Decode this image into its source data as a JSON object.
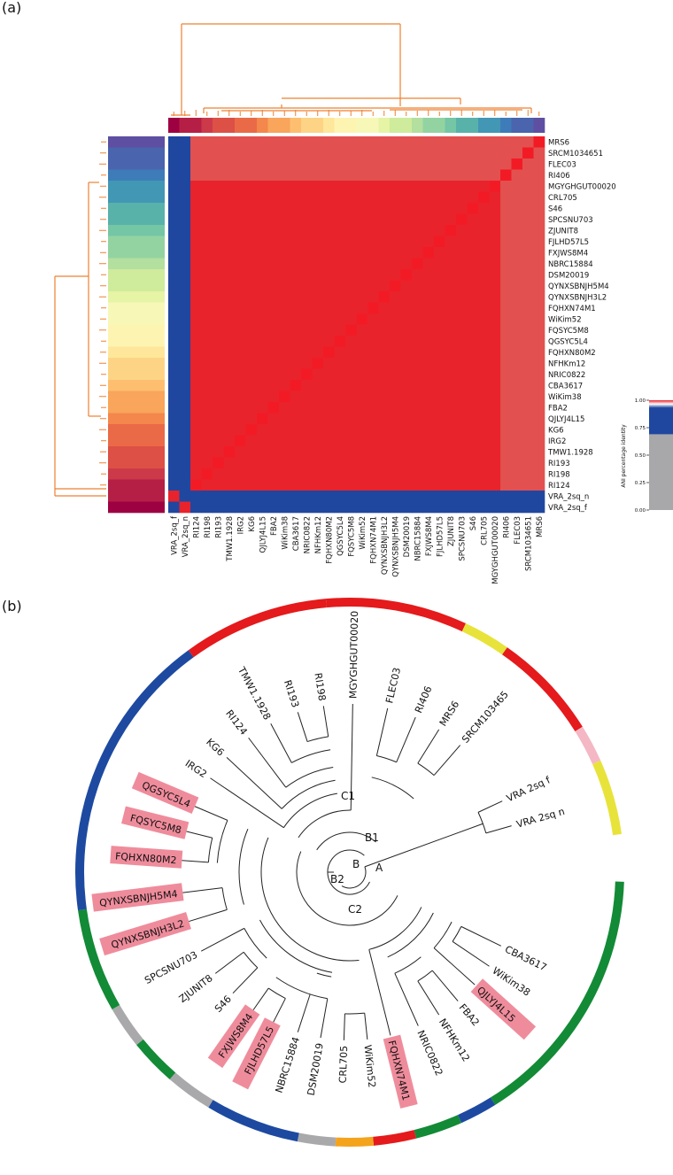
{
  "panels": {
    "a": "(a)",
    "b": "(b)"
  },
  "heatmap": {
    "rows": [
      "MRS6",
      "SRCM1034651",
      "FLEC03",
      "RI406",
      "MGYGHGUT00020",
      "CRL705",
      "S46",
      "SPCSNU703",
      "ZJUNIT8",
      "FJLHD57L5",
      "FXJWS8M4",
      "NBRC15884",
      "DSM20019",
      "QYNXSBNJH5M4",
      "QYNXSBNJH3L2",
      "FQHXN74M1",
      "WiKim52",
      "FQSYC5M8",
      "QGSYC5L4",
      "FQHXN80M2",
      "NFHKm12",
      "NRIC0822",
      "CBA3617",
      "WiKim38",
      "FBA2",
      "QJLYJ4L15",
      "KG6",
      "IRG2",
      "TMW1.1928",
      "RI193",
      "RI198",
      "RI124",
      "VRA_2sq_n",
      "VRA_2sq_f"
    ],
    "columns": [
      "VRA_2sq_f",
      "VRA_2sq_n",
      "RI124",
      "RI198",
      "RI193",
      "TMW1.1928",
      "IRG2",
      "KG6",
      "QJLYJ4L15",
      "FBA2",
      "WiKim38",
      "CBA3617",
      "NRIC0822",
      "NFHKm12",
      "FQHXN80M2",
      "QGSYC5L4",
      "FQSYC5M8",
      "WiKim52",
      "FQHXN74M1",
      "QYNXSBNJH3L2",
      "QYNXSBNJH5M4",
      "DSM20019",
      "NBRC15884",
      "FXJWS8M4",
      "FJLHD57L5",
      "ZJUNIT8",
      "SPCSNU703",
      "S46",
      "CRL705",
      "MGYGHGUT00020",
      "RI406",
      "FLEC03",
      "SRCM1034651",
      "MRS6"
    ],
    "colorbar": {
      "label": "ANI percentage identity",
      "ticks": [
        "1.00",
        "0.75",
        "0.50",
        "0.25",
        "0.00"
      ]
    },
    "colors": {
      "high": "#e8232c",
      "mid": "#e35050",
      "low": "#1f47a0",
      "gray": "#a8a8aa",
      "dendro": "#ee8030"
    }
  },
  "tree": {
    "leaves": [
      {
        "label": "VRA 2sq f",
        "ang": -25,
        "hl": false
      },
      {
        "label": "VRA 2sq n",
        "ang": -16,
        "hl": false
      },
      {
        "label": "CBA3617",
        "ang": 26,
        "hl": false
      },
      {
        "label": "WiKim38",
        "ang": 34,
        "hl": false
      },
      {
        "label": "QJLYJ4L15",
        "ang": 42,
        "hl": true
      },
      {
        "label": "FBA2",
        "ang": 50,
        "hl": false
      },
      {
        "label": "NFHKm12",
        "ang": 58,
        "hl": false
      },
      {
        "label": "NRIC0822",
        "ang": 66,
        "hl": false
      },
      {
        "label": "FQHXN74M1",
        "ang": 76,
        "hl": true
      },
      {
        "label": "WiKim52",
        "ang": 84,
        "hl": false
      },
      {
        "label": "CRL705",
        "ang": 92,
        "hl": false
      },
      {
        "label": "DSM20019",
        "ang": 100,
        "hl": false
      },
      {
        "label": "NBRC15884",
        "ang": 108,
        "hl": false
      },
      {
        "label": "FJLHD57L5",
        "ang": 117,
        "hl": true
      },
      {
        "label": "FXJWS8M4",
        "ang": 125,
        "hl": true
      },
      {
        "label": "S46",
        "ang": 134,
        "hl": false
      },
      {
        "label": "ZJUNIT8",
        "ang": 143,
        "hl": false
      },
      {
        "label": "SPCSNU703",
        "ang": 152,
        "hl": false
      },
      {
        "label": "QYNXSBNJH3L2",
        "ang": 163,
        "hl": true
      },
      {
        "label": "QYNXSBNJH5M4",
        "ang": 173,
        "hl": true
      },
      {
        "label": "FQHXN80M2",
        "ang": 184,
        "hl": true
      },
      {
        "label": "FQSYC5M8",
        "ang": 194,
        "hl": true
      },
      {
        "label": "QGSYC5L4",
        "ang": 203,
        "hl": true
      },
      {
        "label": "IRG2",
        "ang": 214,
        "hl": false
      },
      {
        "label": "KG6",
        "ang": 223,
        "hl": false
      },
      {
        "label": "RI124",
        "ang": 233,
        "hl": false
      },
      {
        "label": "TMW1.1928",
        "ang": 242,
        "hl": false
      },
      {
        "label": "RI193",
        "ang": 252,
        "hl": false
      },
      {
        "label": "RI198",
        "ang": 261,
        "hl": false
      },
      {
        "label": "MGYGHGUT00020",
        "ang": 271,
        "hl": false
      },
      {
        "label": "FLEC03",
        "ang": 283,
        "hl": false
      },
      {
        "label": "RI406",
        "ang": 293,
        "hl": false
      },
      {
        "label": "MRS6",
        "ang": 302,
        "hl": false
      },
      {
        "label": "SRCM103465",
        "ang": 311,
        "hl": false
      }
    ],
    "nodes": {
      "A": "A",
      "B": "B",
      "B1": "B1",
      "B2": "B2",
      "C1": "C1",
      "C2": "C2"
    },
    "ring": [
      {
        "from": -95,
        "to": -65,
        "color": "#e41a1c"
      },
      {
        "from": -65,
        "to": -55,
        "color": "#e8e33a"
      },
      {
        "from": -55,
        "to": -32,
        "color": "#e41a1c"
      },
      {
        "from": -32,
        "to": -24,
        "color": "#f4b7c4"
      },
      {
        "from": -24,
        "to": -8,
        "color": "#e8e33a"
      },
      {
        "from": 2,
        "to": 58,
        "color": "#138a36"
      },
      {
        "from": 58,
        "to": 66,
        "color": "#1d4aa0"
      },
      {
        "from": 66,
        "to": 76,
        "color": "#138a36"
      },
      {
        "from": 76,
        "to": 85,
        "color": "#e41a1c"
      },
      {
        "from": 85,
        "to": 93,
        "color": "#f4a31c"
      },
      {
        "from": 93,
        "to": 101,
        "color": "#a9a9ab"
      },
      {
        "from": 101,
        "to": 121,
        "color": "#1d4aa0"
      },
      {
        "from": 121,
        "to": 131,
        "color": "#a9a9ab"
      },
      {
        "from": 131,
        "to": 141,
        "color": "#138a36"
      },
      {
        "from": 141,
        "to": 150,
        "color": "#a9a9ab"
      },
      {
        "from": 150,
        "to": 172,
        "color": "#138a36"
      },
      {
        "from": 172,
        "to": 234,
        "color": "#1d4aa0"
      },
      {
        "from": 234,
        "to": 265,
        "color": "#e41a1c"
      }
    ],
    "highlight_color": "#ef8c9c"
  }
}
